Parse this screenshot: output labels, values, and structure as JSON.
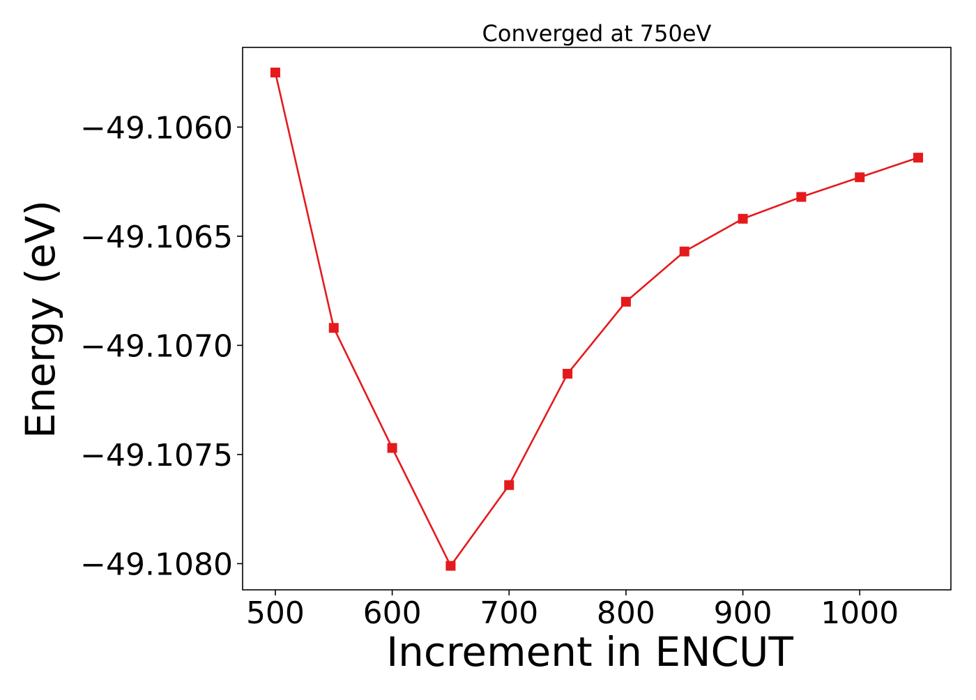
{
  "chart_data": {
    "type": "line",
    "title": "Converged at 750eV",
    "xlabel": "Increment in ENCUT",
    "ylabel": "Energy (eV)",
    "x": [
      500,
      550,
      600,
      650,
      700,
      750,
      800,
      850,
      900,
      950,
      1000,
      1050
    ],
    "series": [
      {
        "values": [
          -49.10575,
          -49.10692,
          -49.10747,
          -49.10801,
          -49.10764,
          -49.10713,
          -49.1068,
          -49.10657,
          -49.10642,
          -49.10632,
          -49.10623,
          -49.10614
        ],
        "color": "#e41a1c",
        "marker": "square"
      }
    ],
    "xlim": [
      472,
      1078
    ],
    "ylim": [
      -49.10812,
      -49.105635
    ],
    "xticks": [
      500,
      600,
      700,
      800,
      900,
      1000
    ],
    "xtick_labels": [
      "500",
      "600",
      "700",
      "800",
      "900",
      "1000"
    ],
    "yticks": [
      -49.106,
      -49.1065,
      -49.107,
      -49.1075,
      -49.108
    ],
    "ytick_labels": [
      "−49.1060",
      "−49.1065",
      "−49.1070",
      "−49.1075",
      "−49.1080"
    ],
    "grid": false,
    "legend": false
  }
}
